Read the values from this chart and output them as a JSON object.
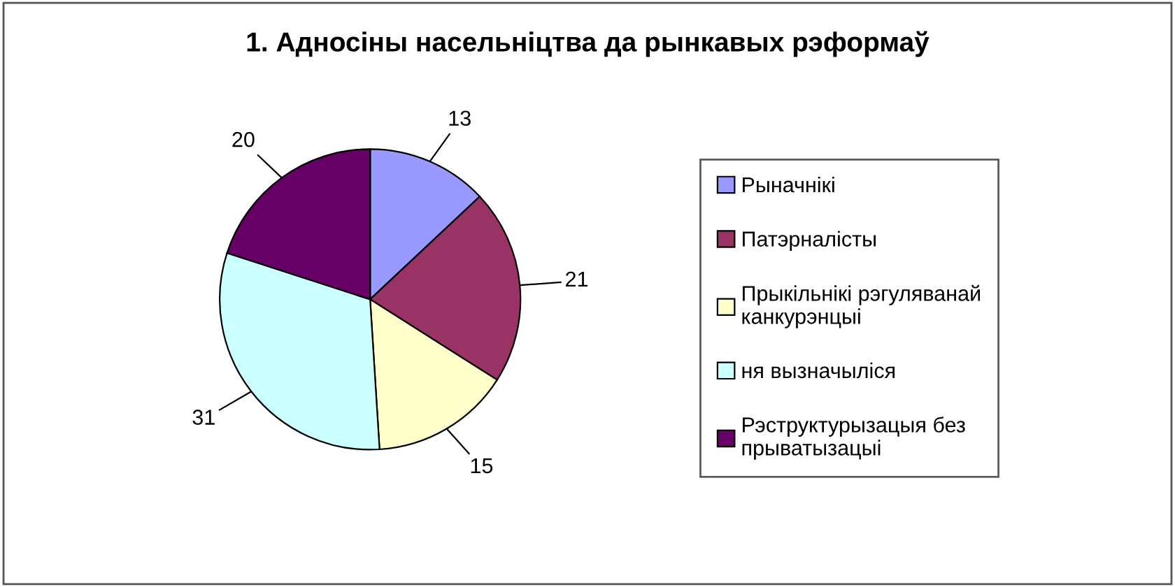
{
  "chart_data": {
    "type": "pie",
    "title": "1. Адносіны насельніцтва да рынкавых рэформаў",
    "categories": [
      "Рыначнікі",
      "Патэрналісты",
      "Прыкільнікі рэгуляванай канкурэнцыі",
      "ня вызначыліся",
      "Рэструктурызацыя без прыватызацыі"
    ],
    "values": [
      13,
      21,
      15,
      31,
      20
    ],
    "colors": [
      "#9999ff",
      "#993366",
      "#ffffcc",
      "#ccffff",
      "#660066"
    ],
    "data_labels": true,
    "legend": "right"
  }
}
